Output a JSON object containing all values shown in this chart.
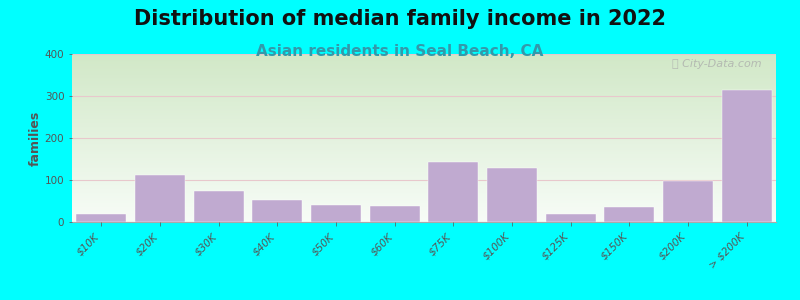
{
  "title": "Distribution of median family income in 2022",
  "subtitle": "Asian residents in Seal Beach, CA",
  "ylabel": "families",
  "background_color": "#00FFFF",
  "bar_color": "#c0aad0",
  "bar_edge_color": "#c0aad0",
  "categories": [
    "$10K",
    "$20K",
    "$30K",
    "$40K",
    "$50K",
    "$60K",
    "$75K",
    "$100K",
    "$125K",
    "$150K",
    "$200K",
    "> $200K"
  ],
  "values": [
    18,
    113,
    75,
    52,
    40,
    37,
    143,
    128,
    18,
    35,
    97,
    315
  ],
  "ylim": [
    0,
    400
  ],
  "yticks": [
    0,
    100,
    200,
    300,
    400
  ],
  "grid_color": "#e8c8cc",
  "title_fontsize": 15,
  "subtitle_fontsize": 11,
  "subtitle_color": "#3399AA",
  "ylabel_fontsize": 9,
  "tick_fontsize": 7.5,
  "watermark_text": "Ⓣ City-Data.com",
  "watermark_color": "#aaaaaa",
  "plot_bg_top_left": "#d8ecd0",
  "plot_bg_bottom_right": "#f8fdf8"
}
